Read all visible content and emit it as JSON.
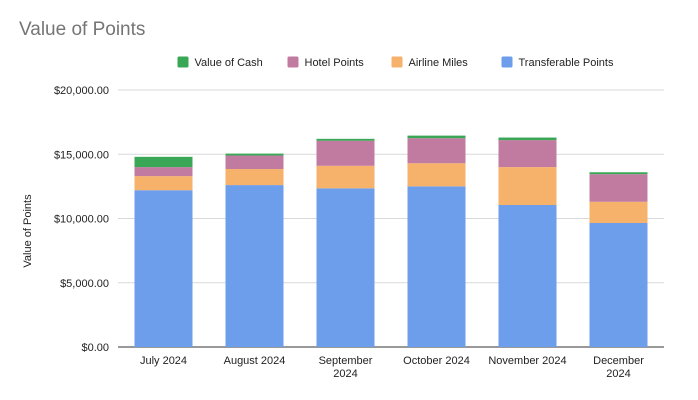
{
  "chart_data": {
    "type": "bar",
    "stacked": true,
    "title": "Value of Points",
    "xlabel": "",
    "ylabel": "Value of Points",
    "ylim": [
      0,
      20000
    ],
    "y_ticks": [
      0,
      5000,
      10000,
      15000,
      20000
    ],
    "y_tick_labels": [
      "$0.00",
      "$5,000.00",
      "$10,000.00",
      "$15,000.00",
      "$20,000.00"
    ],
    "grid": true,
    "legend_position": "top",
    "categories": [
      [
        "July 2024"
      ],
      [
        "August 2024"
      ],
      [
        "September",
        "2024"
      ],
      [
        "October 2024"
      ],
      [
        "November 2024"
      ],
      [
        "December",
        "2024"
      ]
    ],
    "legend_order": [
      "Value of Cash",
      "Hotel Points",
      "Airline Miles",
      "Transferable Points"
    ],
    "series": [
      {
        "name": "Transferable Points",
        "color": "#6d9eeb",
        "values": [
          12200,
          12600,
          12350,
          12500,
          11050,
          9650
        ]
      },
      {
        "name": "Airline Miles",
        "color": "#f6b26b",
        "values": [
          1100,
          1250,
          1750,
          1800,
          2950,
          1650
        ]
      },
      {
        "name": "Hotel Points",
        "color": "#c27ba0",
        "values": [
          700,
          1050,
          1950,
          1950,
          2100,
          2150
        ]
      },
      {
        "name": "Value of Cash",
        "color": "#3aa757",
        "values": [
          800,
          150,
          150,
          200,
          200,
          150
        ]
      }
    ]
  }
}
